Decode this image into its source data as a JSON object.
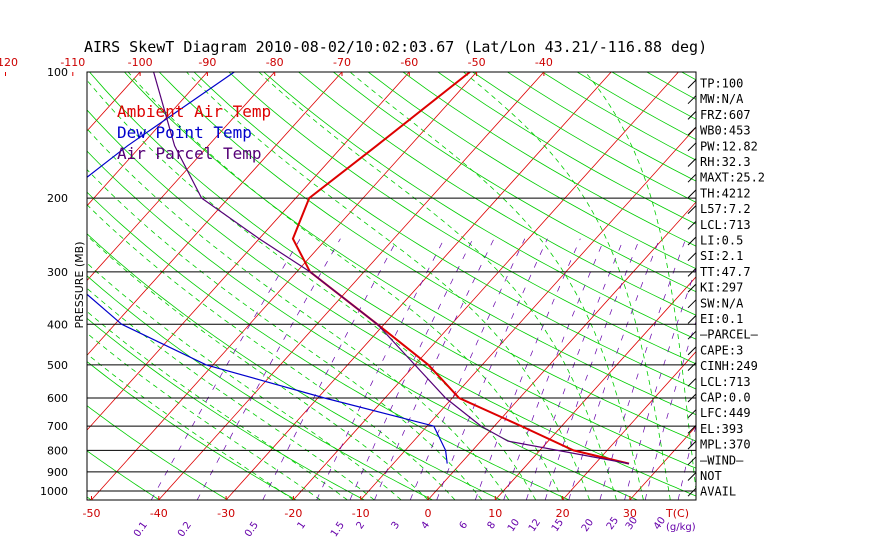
{
  "chart_data": {
    "type": "line",
    "title": "AIRS SkewT Diagram 2010-08-02/10:02:03.67 (Lat/Lon 43.21/-116.88 deg)",
    "y_axis_label": "PRESSURE (MB)",
    "x_axis_unit_label": "T(C)",
    "mixing_ratio_unit_label": "(g/kg)",
    "pressure_ticks": [
      100,
      200,
      300,
      400,
      500,
      600,
      700,
      800,
      900,
      1000
    ],
    "pressure_range": [
      100,
      1050
    ],
    "temp_ticks_top": [
      -120,
      -110,
      -100,
      -90,
      -80,
      -70,
      -60,
      -50,
      -40
    ],
    "temp_ticks_bottom": [
      -50,
      -40,
      -30,
      -20,
      -10,
      0,
      10,
      20,
      30
    ],
    "mixing_ratio_ticks": [
      "0.1",
      "0.2",
      "0.5",
      "1",
      "1.5",
      "2",
      "3",
      "4",
      "6",
      "8",
      "10",
      "12",
      "15",
      "20",
      "25",
      "30",
      "40"
    ],
    "legend": [
      {
        "label": "Ambient Air Temp",
        "color": "#dd0000"
      },
      {
        "label": "Dew Point Temp",
        "color": "#0000cc"
      },
      {
        "label": "Air Parcel Temp",
        "color": "#550077"
      }
    ],
    "colors": {
      "isotherm": "#dd0000",
      "dry_adiabat": "#00cc00",
      "moist_adiabat": "#00cc00",
      "mixing_ratio": "#6600aa",
      "isobar": "#000000"
    },
    "series": [
      {
        "name": "Ambient Air Temp",
        "points": [
          {
            "p": 100,
            "t": -51
          },
          {
            "p": 150,
            "t": -55
          },
          {
            "p": 200,
            "t": -58
          },
          {
            "p": 250,
            "t": -55
          },
          {
            "p": 300,
            "t": -48
          },
          {
            "p": 400,
            "t": -31
          },
          {
            "p": 500,
            "t": -18
          },
          {
            "p": 600,
            "t": -9
          },
          {
            "p": 700,
            "t": 4
          },
          {
            "p": 800,
            "t": 15
          },
          {
            "p": 860,
            "t": 25
          }
        ]
      },
      {
        "name": "Dew Point Temp",
        "points": [
          {
            "p": 100,
            "t": -86
          },
          {
            "p": 150,
            "t": -92
          },
          {
            "p": 200,
            "t": -95
          },
          {
            "p": 250,
            "t": -92
          },
          {
            "p": 300,
            "t": -85
          },
          {
            "p": 400,
            "t": -69
          },
          {
            "p": 500,
            "t": -51
          },
          {
            "p": 600,
            "t": -29
          },
          {
            "p": 700,
            "t": -9
          },
          {
            "p": 800,
            "t": -4
          },
          {
            "p": 860,
            "t": -2
          }
        ]
      },
      {
        "name": "Air Parcel Temp",
        "points": [
          {
            "p": 100,
            "t": -98
          },
          {
            "p": 150,
            "t": -85
          },
          {
            "p": 200,
            "t": -74
          },
          {
            "p": 250,
            "t": -60
          },
          {
            "p": 300,
            "t": -48
          },
          {
            "p": 400,
            "t": -31
          },
          {
            "p": 500,
            "t": -20
          },
          {
            "p": 600,
            "t": -11
          },
          {
            "p": 700,
            "t": -2
          },
          {
            "p": 760,
            "t": 4
          },
          {
            "p": 860,
            "t": 25
          }
        ]
      }
    ],
    "indices": [
      "TP:100",
      "MW:N/A",
      "FRZ:607",
      "WB0:453",
      "PW:12.82",
      "RH:32.3",
      "MAXT:25.2",
      "TH:4212",
      "L57:7.2",
      "LCL:713",
      "LI:0.5",
      "SI:2.1",
      "TT:47.7",
      "KI:297",
      "SW:N/A",
      "EI:0.1",
      "—PARCEL—",
      "CAPE:3",
      "CINH:249",
      "LCL:713",
      "CAP:0.0",
      "LFC:449",
      "EL:393",
      "MPL:370",
      "—WIND—",
      "NOT",
      "AVAIL"
    ]
  }
}
